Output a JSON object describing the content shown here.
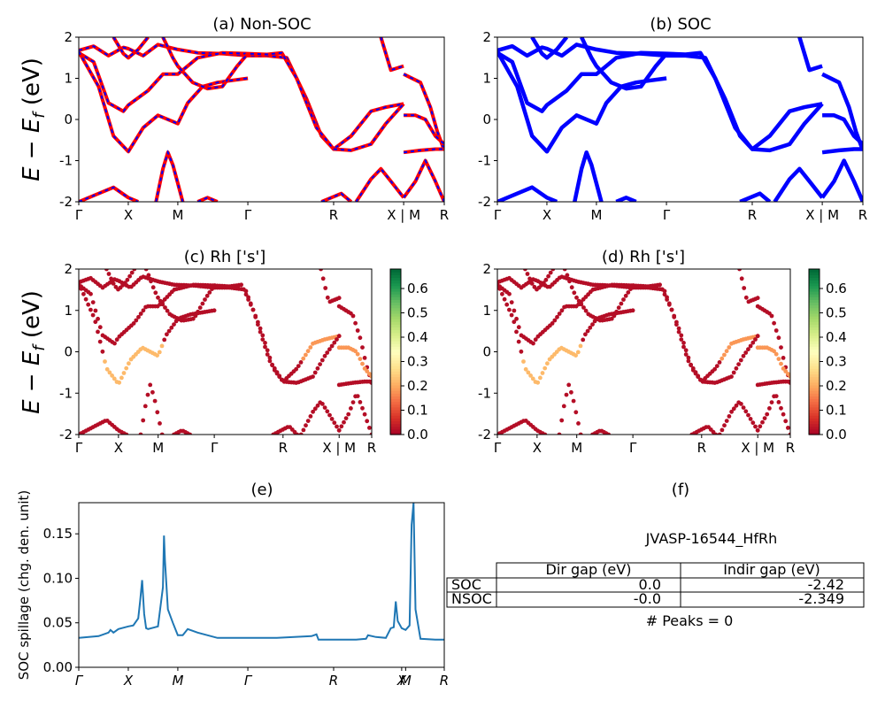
{
  "chart_data": [
    {
      "panel": "a",
      "type": "line",
      "title": "(a) Non-SOC",
      "ylabel_main": "E − E",
      "ylabel_sub": "f",
      "ylabel_unit": " (eV)",
      "ylim": [
        -2,
        2
      ],
      "yticks": [
        -2,
        -1,
        0,
        1,
        2
      ],
      "x_ticks": [
        "Γ",
        "X",
        "M",
        "Γ",
        "R",
        "X | M",
        "R"
      ],
      "x_tick_pos": [
        0,
        0.5,
        1,
        1.707,
        2.573,
        3.28,
        3.69
      ],
      "colors": {
        "base": "#ff0000",
        "dash": "#0000ff"
      },
      "bands": [
        [
          [
            0,
            1.68
          ],
          [
            0.15,
            1.78
          ],
          [
            0.3,
            1.55
          ],
          [
            0.45,
            1.75
          ],
          [
            0.5,
            1.72
          ],
          [
            0.65,
            1.55
          ],
          [
            0.8,
            1.82
          ],
          [
            1,
            1.7
          ],
          [
            1.2,
            1.62
          ],
          [
            1.45,
            1.6
          ],
          [
            1.707,
            1.55
          ],
          [
            1.9,
            1.55
          ],
          [
            2.1,
            1.5
          ],
          [
            2.3,
            0.5
          ],
          [
            2.45,
            -0.4
          ],
          [
            2.573,
            -0.72
          ],
          [
            2.75,
            -0.4
          ],
          [
            2.95,
            0.2
          ],
          [
            3.1,
            0.3
          ],
          [
            3.28,
            0.38
          ]
        ],
        [
          [
            0,
            1.62
          ],
          [
            0.15,
            1.4
          ],
          [
            0.3,
            0.4
          ],
          [
            0.45,
            0.2
          ],
          [
            0.5,
            0.35
          ],
          [
            0.7,
            0.7
          ],
          [
            0.85,
            1.1
          ],
          [
            1,
            1.1
          ],
          [
            1.2,
            1.5
          ],
          [
            1.45,
            1.62
          ],
          [
            1.707,
            1.6
          ],
          [
            1.9,
            1.58
          ],
          [
            2.05,
            1.62
          ],
          [
            2.2,
            1.0
          ],
          [
            2.4,
            -0.2
          ],
          [
            2.573,
            -0.72
          ],
          [
            2.75,
            -0.75
          ],
          [
            2.95,
            -0.6
          ],
          [
            3.1,
            -0.1
          ],
          [
            3.28,
            0.38
          ]
        ],
        [
          [
            0,
            1.65
          ],
          [
            0.2,
            0.8
          ],
          [
            0.35,
            -0.4
          ],
          [
            0.5,
            -0.78
          ],
          [
            0.65,
            -0.2
          ],
          [
            0.8,
            0.1
          ],
          [
            0.95,
            -0.05
          ],
          [
            1,
            -0.1
          ],
          [
            1.1,
            0.4
          ],
          [
            1.25,
            0.8
          ],
          [
            1.4,
            0.9
          ],
          [
            1.55,
            0.95
          ],
          [
            1.707,
            1.0
          ]
        ],
        [
          [
            0.35,
            2.0
          ],
          [
            0.45,
            1.6
          ],
          [
            0.5,
            1.5
          ],
          [
            0.6,
            1.7
          ],
          [
            0.7,
            2.0
          ]
        ],
        [
          [
            0.85,
            2.0
          ],
          [
            0.95,
            1.5
          ],
          [
            1,
            1.3
          ],
          [
            1.15,
            0.9
          ],
          [
            1.3,
            0.75
          ],
          [
            1.45,
            0.8
          ],
          [
            1.6,
            1.3
          ],
          [
            1.707,
            1.6
          ]
        ],
        [
          [
            0.78,
            -2.0
          ],
          [
            0.85,
            -1.2
          ],
          [
            0.9,
            -0.8
          ],
          [
            0.95,
            -1.1
          ],
          [
            1.05,
            -2.0
          ]
        ],
        [
          [
            0,
            -2.0
          ],
          [
            0.2,
            -1.8
          ],
          [
            0.35,
            -1.65
          ],
          [
            0.5,
            -1.9
          ],
          [
            0.6,
            -2.0
          ]
        ],
        [
          [
            1.2,
            -2.0
          ],
          [
            1.3,
            -1.9
          ],
          [
            1.4,
            -2.0
          ]
        ],
        [
          [
            2.45,
            -2.0
          ],
          [
            2.55,
            -1.9
          ],
          [
            2.65,
            -1.8
          ],
          [
            2.75,
            -2.0
          ]
        ],
        [
          [
            2.8,
            -2.0
          ],
          [
            2.95,
            -1.45
          ],
          [
            3.05,
            -1.2
          ],
          [
            3.15,
            -1.5
          ],
          [
            3.28,
            -1.9
          ]
        ],
        [
          [
            3.05,
            2.0
          ],
          [
            3.15,
            1.2
          ],
          [
            3.28,
            1.3
          ]
        ],
        [
          [
            3.28,
            1.1
          ],
          [
            3.45,
            0.9
          ],
          [
            3.55,
            0.3
          ],
          [
            3.62,
            -0.3
          ],
          [
            3.69,
            -0.75
          ]
        ],
        [
          [
            3.28,
            0.1
          ],
          [
            3.4,
            0.1
          ],
          [
            3.5,
            0.0
          ],
          [
            3.6,
            -0.4
          ],
          [
            3.69,
            -0.6
          ]
        ],
        [
          [
            3.28,
            -0.8
          ],
          [
            3.45,
            -0.75
          ],
          [
            3.6,
            -0.72
          ],
          [
            3.69,
            -0.72
          ]
        ],
        [
          [
            3.28,
            -1.9
          ],
          [
            3.4,
            -1.5
          ],
          [
            3.5,
            -1.0
          ],
          [
            3.6,
            -1.5
          ],
          [
            3.69,
            -2.0
          ]
        ]
      ]
    },
    {
      "panel": "b",
      "type": "line",
      "title": "(b) SOC",
      "ylim": [
        -2,
        2
      ],
      "yticks": [
        -2,
        -1,
        0,
        1,
        2
      ],
      "x_ticks": [
        "Γ",
        "X",
        "M",
        "Γ",
        "R",
        "X | M",
        "R"
      ],
      "x_tick_pos": [
        0,
        0.5,
        1,
        1.707,
        2.573,
        3.28,
        3.69
      ],
      "colors": {
        "base": "#0000ff"
      },
      "bands_ref": "a"
    },
    {
      "panel": "c",
      "type": "scatter",
      "title": "(c)  Rh ['s']",
      "ylim": [
        -2,
        2
      ],
      "yticks": [
        -2,
        -1,
        0,
        1,
        2
      ],
      "x_ticks": [
        "Γ",
        "X",
        "M",
        "Γ",
        "R",
        "X | M",
        "R"
      ],
      "x_tick_pos": [
        0,
        0.5,
        1,
        1.707,
        2.573,
        3.28,
        3.69
      ],
      "colorbar_ticks": [
        0.0,
        0.1,
        0.2,
        0.3,
        0.4,
        0.5,
        0.6
      ],
      "colorbar_ticklabels": [
        "0.0",
        "0.1",
        "0.2",
        "0.3",
        "0.4",
        "0.5",
        "0.6"
      ],
      "colorbar_range": [
        0,
        0.68
      ],
      "bands_ref": "a",
      "highlight": [
        {
          "band": 2,
          "x_from": 0.3,
          "x_to": 1.05,
          "weight": 0.22
        },
        {
          "band": 0,
          "x_from": 2.8,
          "x_to": 3.28,
          "weight": 0.18
        },
        {
          "band": 12,
          "x_from": 3.28,
          "x_to": 3.69,
          "weight": 0.18
        }
      ],
      "base_weight": 0.02
    },
    {
      "panel": "d",
      "type": "scatter",
      "title": "(d) Rh ['s']",
      "ylim": [
        -2,
        2
      ],
      "yticks": [
        -2,
        -1,
        0,
        1,
        2
      ],
      "x_ticks": [
        "Γ",
        "X",
        "M",
        "Γ",
        "R",
        "X | M",
        "R"
      ],
      "x_tick_pos": [
        0,
        0.5,
        1,
        1.707,
        2.573,
        3.28,
        3.69
      ],
      "colorbar_ticks": [
        0.0,
        0.1,
        0.2,
        0.3,
        0.4,
        0.5,
        0.6
      ],
      "colorbar_ticklabels": [
        "0.0",
        "0.1",
        "0.2",
        "0.3",
        "0.4",
        "0.5",
        "0.6"
      ],
      "colorbar_range": [
        0,
        0.68
      ],
      "bands_ref": "c"
    },
    {
      "panel": "e",
      "type": "line",
      "title": "(e)",
      "ylabel": "SOC spillage (chg. den. unit)",
      "ylim": [
        0,
        0.185
      ],
      "yticks": [
        0.0,
        0.05,
        0.1,
        0.15
      ],
      "ytick_labels": [
        "0.00",
        "0.05",
        "0.10",
        "0.15"
      ],
      "x_ticks": [
        "Γ",
        "X",
        "M",
        "Γ",
        "R",
        "X",
        "M",
        "R"
      ],
      "x_tick_pos": [
        0,
        0.5,
        1,
        1.707,
        2.573,
        3.26,
        3.3,
        3.69
      ],
      "color": "#1f77b4",
      "x": [
        0,
        0.2,
        0.3,
        0.32,
        0.35,
        0.4,
        0.5,
        0.55,
        0.6,
        0.62,
        0.64,
        0.66,
        0.68,
        0.7,
        0.8,
        0.85,
        0.86,
        0.87,
        0.9,
        0.95,
        1,
        1.05,
        1.1,
        1.2,
        1.4,
        1.6,
        1.707,
        2.0,
        2.35,
        2.4,
        2.42,
        2.6,
        2.8,
        2.9,
        2.92,
        3.0,
        3.1,
        3.15,
        3.18,
        3.2,
        3.22,
        3.26,
        3.3,
        3.34,
        3.36,
        3.38,
        3.4,
        3.45,
        3.6,
        3.69
      ],
      "y": [
        0.033,
        0.035,
        0.039,
        0.042,
        0.039,
        0.043,
        0.046,
        0.047,
        0.055,
        0.075,
        0.098,
        0.06,
        0.044,
        0.043,
        0.046,
        0.09,
        0.148,
        0.12,
        0.065,
        0.05,
        0.036,
        0.036,
        0.043,
        0.039,
        0.033,
        0.033,
        0.033,
        0.033,
        0.035,
        0.037,
        0.031,
        0.031,
        0.031,
        0.032,
        0.036,
        0.034,
        0.033,
        0.044,
        0.045,
        0.074,
        0.052,
        0.044,
        0.042,
        0.047,
        0.16,
        0.185,
        0.065,
        0.032,
        0.031,
        0.031
      ]
    },
    {
      "panel": "f",
      "type": "table",
      "title": "(f)",
      "name": "JVASP-16544_HfRh",
      "columns": [
        "Dir gap (eV)",
        "Indir gap (eV)"
      ],
      "rows": [
        {
          "label": "SOC",
          "values": [
            "0.0",
            "-2.42"
          ]
        },
        {
          "label": "NSOC",
          "values": [
            "-0.0",
            "-2.349"
          ]
        }
      ],
      "peaks": "# Peaks = 0"
    }
  ]
}
